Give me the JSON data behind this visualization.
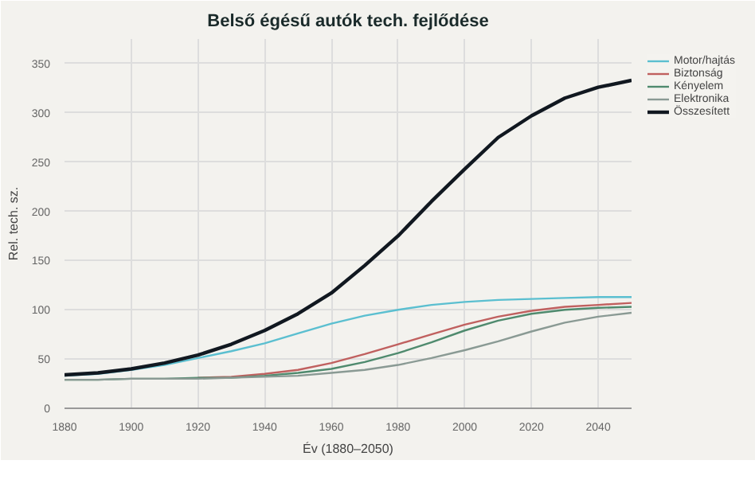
{
  "chart_data": {
    "type": "line",
    "title": "Belső égésű autók tech. fejlődése",
    "xlabel": "Év (1880–2050)",
    "ylabel": "Rel. tech. sz.",
    "x": [
      1880,
      1890,
      1900,
      1910,
      1920,
      1930,
      1940,
      1950,
      1960,
      1970,
      1980,
      1990,
      2000,
      2010,
      2020,
      2030,
      2040,
      2050
    ],
    "series": [
      {
        "name": "Motor/hajtás",
        "color": "#5bbfd0",
        "values": [
          33,
          35,
          39,
          44,
          51,
          58,
          66,
          76,
          86,
          94,
          100,
          105,
          108,
          110,
          111,
          112,
          113,
          113
        ]
      },
      {
        "name": "Biztonság",
        "color": "#c0605f",
        "values": [
          null,
          null,
          null,
          null,
          31,
          32,
          35,
          39,
          46,
          55,
          65,
          75,
          85,
          93,
          99,
          103,
          105,
          107
        ]
      },
      {
        "name": "Kényelem",
        "color": "#4f8a6e",
        "values": [
          29,
          29,
          30,
          30,
          31,
          31,
          33,
          36,
          40,
          47,
          56,
          67,
          79,
          89,
          96,
          100,
          102,
          103
        ]
      },
      {
        "name": "Elektronika",
        "color": "#8a9a94",
        "values": [
          29,
          29,
          30,
          30,
          30,
          31,
          32,
          33,
          36,
          39,
          44,
          51,
          59,
          68,
          78,
          87,
          93,
          97
        ]
      },
      {
        "name": "Összesített",
        "color": "#111820",
        "values": [
          34,
          36,
          40,
          46,
          54,
          65,
          79,
          96,
          117,
          145,
          175,
          210,
          243,
          275,
          297,
          315,
          326,
          333
        ]
      }
    ],
    "xlim": [
      1880,
      2050
    ],
    "ylim": [
      0,
      375
    ],
    "xticks": [
      1880,
      1900,
      1920,
      1940,
      1960,
      1980,
      2000,
      2020,
      2040
    ],
    "yticks": [
      0,
      50,
      100,
      150,
      200,
      250,
      300,
      350
    ],
    "grid": true,
    "legend": "top right",
    "marker": "none",
    "line_style": "solid"
  }
}
